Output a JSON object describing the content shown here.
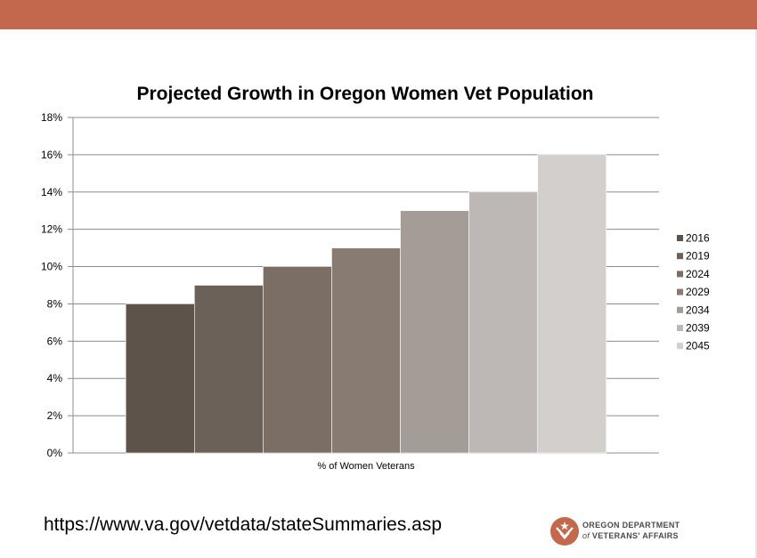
{
  "slide": {
    "band_color": "#c4684d",
    "source_url": "https://www.va.gov/vetdata/stateSummaries.asp"
  },
  "logo": {
    "icon": "oregon-dva-emblem-icon",
    "line1": "OREGON DEPARTMENT",
    "line2_prefix": "of",
    "line2_main": "VETERANS' AFFAIRS",
    "color": "#c4684d"
  },
  "chart_data": {
    "type": "bar",
    "title": "Projected Growth in Oregon Women Vet Population",
    "xlabel": "",
    "ylabel": "",
    "categories": [
      "% of Women Veterans"
    ],
    "series": [
      {
        "name": "2016",
        "values": [
          8
        ],
        "color": "#5d534a"
      },
      {
        "name": "2019",
        "values": [
          9
        ],
        "color": "#6c6158"
      },
      {
        "name": "2024",
        "values": [
          10
        ],
        "color": "#7a6e65"
      },
      {
        "name": "2029",
        "values": [
          11
        ],
        "color": "#887b72"
      },
      {
        "name": "2034",
        "values": [
          13
        ],
        "color": "#a49c97"
      },
      {
        "name": "2039",
        "values": [
          14
        ],
        "color": "#bdb8b5"
      },
      {
        "name": "2045",
        "values": [
          16
        ],
        "color": "#d2cfcc"
      }
    ],
    "ylim": [
      0,
      18
    ],
    "yticks": [
      0,
      2,
      4,
      6,
      8,
      10,
      12,
      14,
      16,
      18
    ],
    "ytick_format": "percent",
    "grid": true,
    "legend_position": "right"
  }
}
